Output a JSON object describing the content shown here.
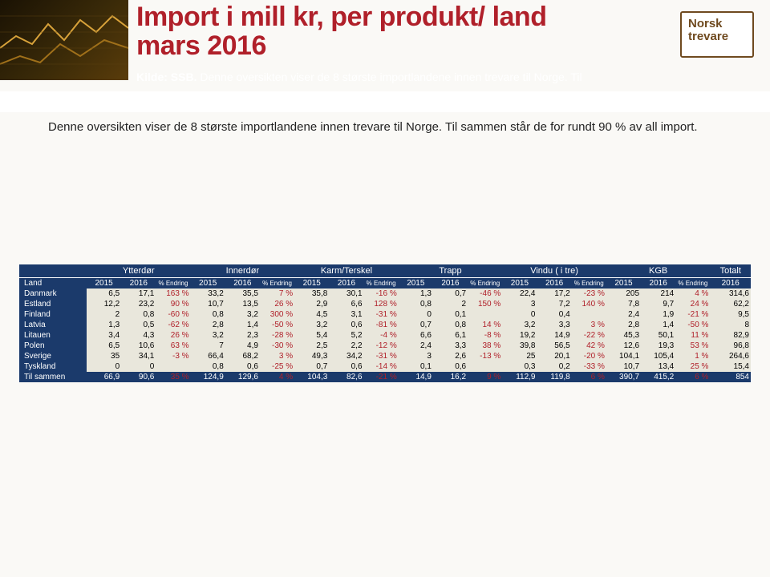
{
  "title_line1": "Import i mill kr, per produkt/ land",
  "title_line2": "mars 2016",
  "kilde_label": "Kilde: SSB.",
  "subtitle_rest": "Denne oversikten viser de 8 største importlandene innen trevare til Norge. Til",
  "intro": "Denne oversikten viser de 8 største importlandene innen trevare til Norge. Til sammen står de for  rundt 90 % av all import.",
  "logo_line1": "Norsk",
  "logo_line2": "trevare",
  "categories": [
    "Ytterdør",
    "Innerdør",
    "Karm/Terskel",
    "Trapp",
    "Vindu ( i tre)",
    "KGB"
  ],
  "total_cat": "Totalt",
  "land_label": "Land",
  "year_a": "2015",
  "year_b": "2016",
  "endr_label": "% Endring",
  "total_col_label": "2016",
  "colors": {
    "header_bg": "#1b3a6b",
    "row_bg": "#e9e7dc",
    "accent": "#b0202a",
    "page_bg": "#faf9f6",
    "logo_color": "#6f4a1f"
  },
  "rows": [
    {
      "land": "Danmark",
      "cells": [
        "6,5",
        "17,1",
        "163 %",
        "33,2",
        "35,5",
        "7 %",
        "35,8",
        "30,1",
        "-16 %",
        "1,3",
        "0,7",
        "-46 %",
        "22,4",
        "17,2",
        "-23 %",
        "205",
        "214",
        "4 %"
      ],
      "total": "314,6"
    },
    {
      "land": "Estland",
      "cells": [
        "12,2",
        "23,2",
        "90 %",
        "10,7",
        "13,5",
        "26 %",
        "2,9",
        "6,6",
        "128 %",
        "0,8",
        "2",
        "150 %",
        "3",
        "7,2",
        "140 %",
        "7,8",
        "9,7",
        "24 %"
      ],
      "total": "62,2"
    },
    {
      "land": "Finland",
      "cells": [
        "2",
        "0,8",
        "-60 %",
        "0,8",
        "3,2",
        "300 %",
        "4,5",
        "3,1",
        "-31 %",
        "0",
        "0,1",
        "",
        "0",
        "0,4",
        "",
        "2,4",
        "1,9",
        "-21 %"
      ],
      "total": "9,5"
    },
    {
      "land": "Latvia",
      "cells": [
        "1,3",
        "0,5",
        "-62 %",
        "2,8",
        "1,4",
        "-50 %",
        "3,2",
        "0,6",
        "-81 %",
        "0,7",
        "0,8",
        "14 %",
        "3,2",
        "3,3",
        "3 %",
        "2,8",
        "1,4",
        "-50 %"
      ],
      "total": "8"
    },
    {
      "land": "Litauen",
      "cells": [
        "3,4",
        "4,3",
        "26 %",
        "3,2",
        "2,3",
        "-28 %",
        "5,4",
        "5,2",
        "-4 %",
        "6,6",
        "6,1",
        "-8 %",
        "19,2",
        "14,9",
        "-22 %",
        "45,3",
        "50,1",
        "11 %"
      ],
      "total": "82,9"
    },
    {
      "land": "Polen",
      "cells": [
        "6,5",
        "10,6",
        "63 %",
        "7",
        "4,9",
        "-30 %",
        "2,5",
        "2,2",
        "-12 %",
        "2,4",
        "3,3",
        "38 %",
        "39,8",
        "56,5",
        "42 %",
        "12,6",
        "19,3",
        "53 %"
      ],
      "total": "96,8"
    },
    {
      "land": "Sverige",
      "cells": [
        "35",
        "34,1",
        "-3 %",
        "66,4",
        "68,2",
        "3 %",
        "49,3",
        "34,2",
        "-31 %",
        "3",
        "2,6",
        "-13 %",
        "25",
        "20,1",
        "-20 %",
        "104,1",
        "105,4",
        "1 %"
      ],
      "total": "264,6"
    },
    {
      "land": "Tyskland",
      "cells": [
        "0",
        "0",
        "",
        "0,8",
        "0,6",
        "-25 %",
        "0,7",
        "0,6",
        "-14 %",
        "0,1",
        "0,6",
        "",
        "0,3",
        "0,2",
        "-33 %",
        "10,7",
        "13,4",
        "25 %"
      ],
      "total": "15,4"
    }
  ],
  "total_row": {
    "land": "Til sammen",
    "cells": [
      "66,9",
      "90,6",
      "35 %",
      "124,9",
      "129,6",
      "4 %",
      "104,3",
      "82,6",
      "-21 %",
      "14,9",
      "16,2",
      "9 %",
      "112,9",
      "119,8",
      "6 %",
      "390,7",
      "415,2",
      "6 %"
    ],
    "total": "854"
  }
}
